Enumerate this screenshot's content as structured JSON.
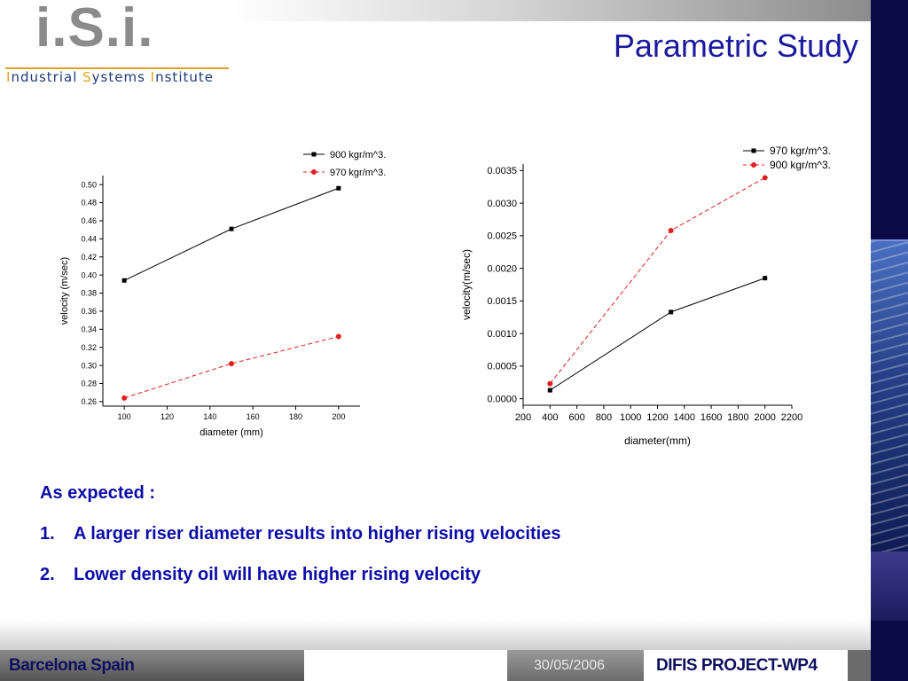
{
  "logo": {
    "mark": "i.S.i.",
    "subtitle_parts": [
      "I",
      "ndustrial ",
      "S",
      "ystems ",
      "I",
      "nstitute"
    ]
  },
  "title": "Parametric Study",
  "chart_data": [
    {
      "type": "line",
      "xlabel": "diameter (mm)",
      "ylabel": "velocity (m/sec)",
      "xlim": [
        90,
        210
      ],
      "ylim": [
        0.255,
        0.51
      ],
      "xticks": [
        100,
        120,
        140,
        160,
        180,
        200
      ],
      "yticks": [
        "0.26",
        "0.28",
        "0.30",
        "0.32",
        "0.34",
        "0.36",
        "0.38",
        "0.40",
        "0.42",
        "0.44",
        "0.46",
        "0.48",
        "0.50"
      ],
      "legend": "top-right",
      "series": [
        {
          "name": "900 kgr/m^3.",
          "color": "#000000",
          "marker": "square",
          "dash": "solid",
          "x": [
            100,
            150,
            200
          ],
          "y": [
            0.394,
            0.451,
            0.496
          ]
        },
        {
          "name": "970 kgr/m^3.",
          "color": "#e02020",
          "marker": "circle",
          "dash": "dashed",
          "x": [
            100,
            150,
            200
          ],
          "y": [
            0.264,
            0.302,
            0.332
          ]
        }
      ]
    },
    {
      "type": "line",
      "xlabel": "diameter(mm)",
      "ylabel": "velocity(m/sec)",
      "xlim": [
        200,
        2200
      ],
      "ylim": [
        -0.0001,
        0.0036
      ],
      "xticks": [
        200,
        400,
        600,
        800,
        1000,
        1200,
        1400,
        1600,
        1800,
        2000,
        2200
      ],
      "yticks": [
        "0.0000",
        "0.0005",
        "0.0010",
        "0.0015",
        "0.0020",
        "0.0025",
        "0.0030",
        "0.0035"
      ],
      "legend": "top-right",
      "series": [
        {
          "name": "970 kgr/m^3.",
          "color": "#000000",
          "marker": "square",
          "dash": "solid",
          "x": [
            400,
            1300,
            2000
          ],
          "y": [
            0.00013,
            0.00133,
            0.00185
          ]
        },
        {
          "name": "900 kgr/m^3.",
          "color": "#e02020",
          "marker": "circle",
          "dash": "dashed",
          "x": [
            400,
            1300,
            2000
          ],
          "y": [
            0.00023,
            0.00258,
            0.00339
          ]
        }
      ]
    }
  ],
  "notes": {
    "heading": "As expected :",
    "items": [
      {
        "num": "1.",
        "text": "A larger riser diameter results into higher rising velocities"
      },
      {
        "num": "2.",
        "text": "Lower density oil will have higher rising velocity"
      }
    ]
  },
  "footer": {
    "location": "Barcelona Spain",
    "date": "30/05/2006",
    "project": "DIFIS PROJECT-WP4"
  }
}
